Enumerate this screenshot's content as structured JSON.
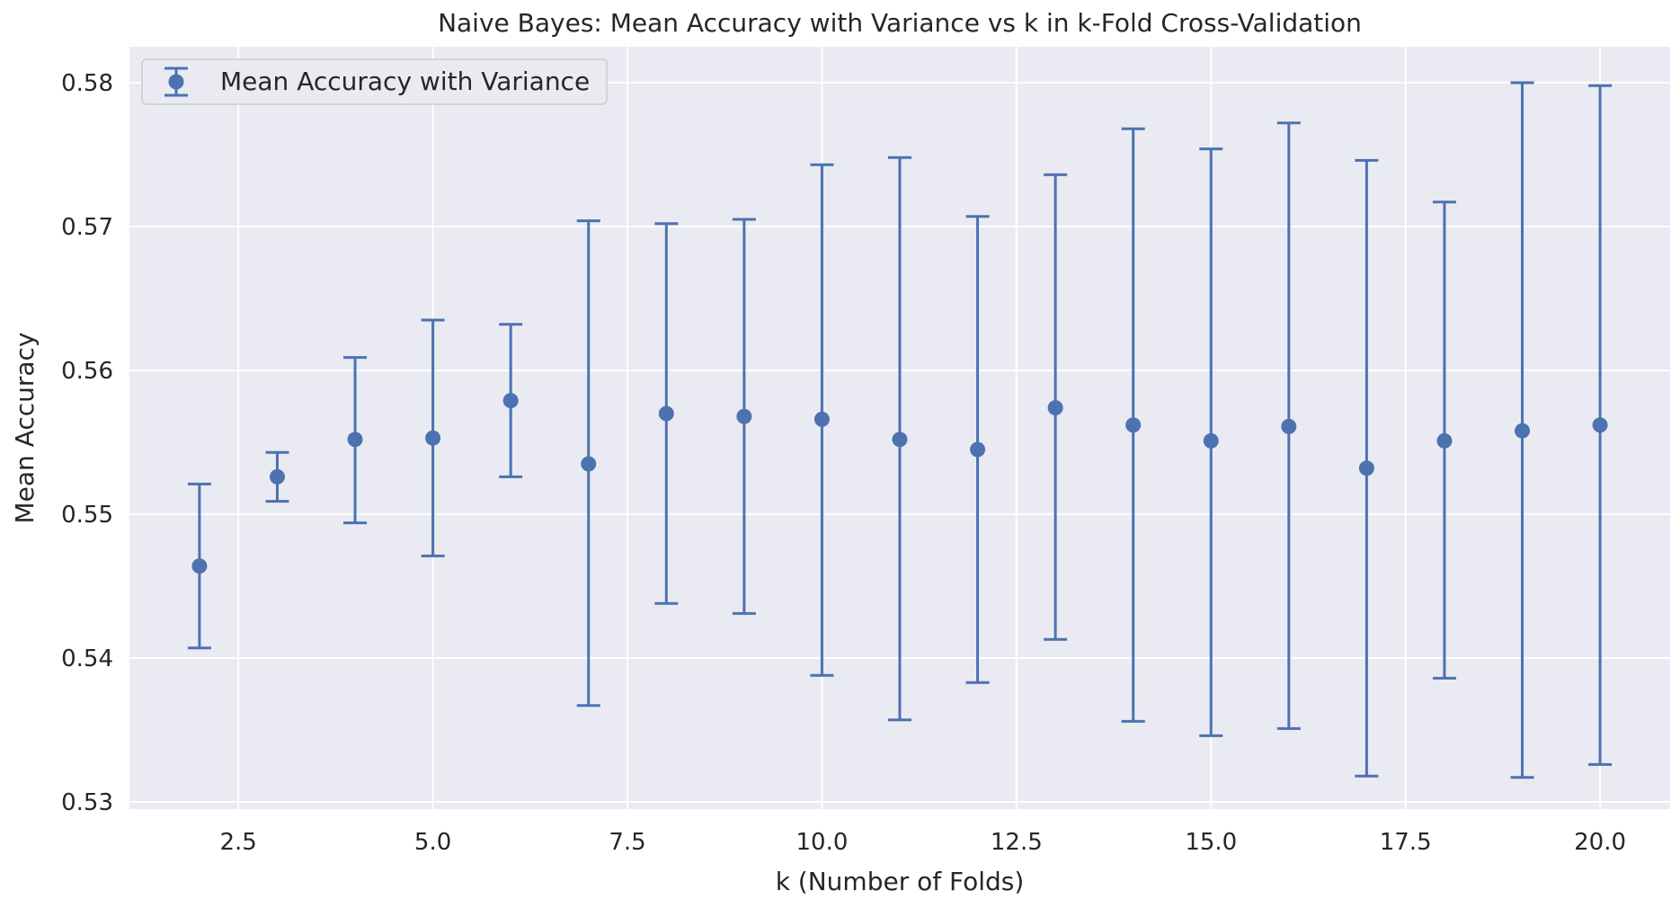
{
  "chart_data": {
    "type": "scatter",
    "title": "Naive Bayes: Mean Accuracy with Variance vs k in k-Fold Cross-Validation",
    "xlabel": "k (Number of Folds)",
    "ylabel": "Mean Accuracy",
    "xlim": [
      1.1,
      20.9
    ],
    "ylim": [
      0.5295,
      0.5825
    ],
    "xticks": [
      2.5,
      5.0,
      7.5,
      10.0,
      12.5,
      15.0,
      17.5,
      20.0
    ],
    "xtick_labels": [
      "2.5",
      "5.0",
      "7.5",
      "10.0",
      "12.5",
      "15.0",
      "17.5",
      "20.0"
    ],
    "yticks": [
      0.53,
      0.54,
      0.55,
      0.56,
      0.57,
      0.58
    ],
    "ytick_labels": [
      "0.53",
      "0.54",
      "0.55",
      "0.56",
      "0.57",
      "0.58"
    ],
    "grid": true,
    "legend_position": "top-left",
    "series": [
      {
        "name": "Mean Accuracy with Variance",
        "color": "#4c72b0",
        "x": [
          2,
          3,
          4,
          5,
          6,
          7,
          8,
          9,
          10,
          11,
          12,
          13,
          14,
          15,
          16,
          17,
          18,
          19,
          20
        ],
        "y": [
          0.5464,
          0.5526,
          0.5552,
          0.5553,
          0.5579,
          0.5535,
          0.557,
          0.5568,
          0.5566,
          0.5552,
          0.5545,
          0.5574,
          0.5562,
          0.5551,
          0.5561,
          0.5532,
          0.5551,
          0.5558,
          0.5562
        ],
        "lower": [
          0.5407,
          0.5509,
          0.5494,
          0.5471,
          0.5526,
          0.5367,
          0.5438,
          0.5431,
          0.5388,
          0.5357,
          0.5383,
          0.5413,
          0.5356,
          0.5346,
          0.5351,
          0.5318,
          0.5386,
          0.5317,
          0.5326
        ],
        "upper": [
          0.5521,
          0.5543,
          0.5609,
          0.5635,
          0.5632,
          0.5704,
          0.5702,
          0.5705,
          0.5743,
          0.5748,
          0.5707,
          0.5736,
          0.5768,
          0.5754,
          0.5772,
          0.5746,
          0.5717,
          0.58,
          0.5798
        ]
      }
    ]
  }
}
